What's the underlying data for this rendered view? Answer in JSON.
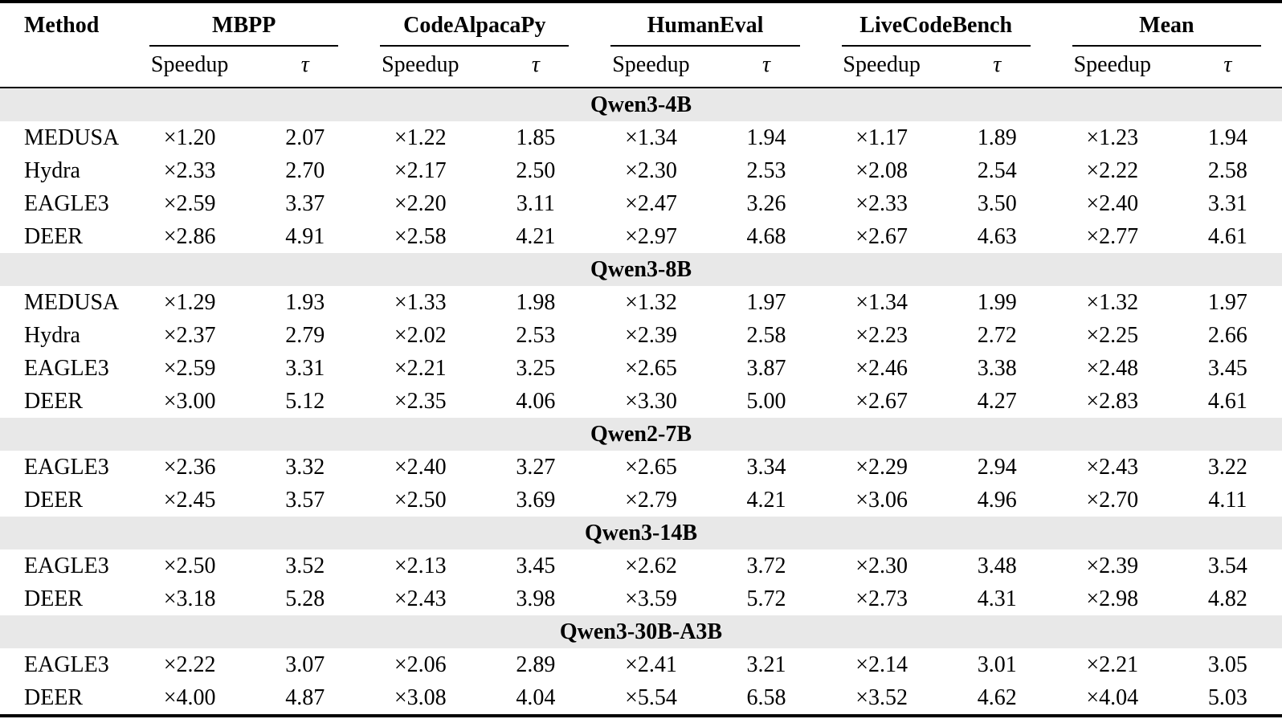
{
  "table": {
    "method_header": "Method",
    "groups": [
      {
        "label": "MBPP"
      },
      {
        "label": "CodeAlpacaPy"
      },
      {
        "label": "HumanEval"
      },
      {
        "label": "LiveCodeBench"
      },
      {
        "label": "Mean"
      }
    ],
    "subheaders": {
      "speedup": "Speedup",
      "tau": "τ"
    },
    "sections": [
      {
        "model": "Qwen3-4B",
        "rows": [
          {
            "method": "MEDUSA",
            "values": [
              "×1.20",
              "2.07",
              "×1.22",
              "1.85",
              "×1.34",
              "1.94",
              "×1.17",
              "1.89",
              "×1.23",
              "1.94"
            ]
          },
          {
            "method": "Hydra",
            "values": [
              "×2.33",
              "2.70",
              "×2.17",
              "2.50",
              "×2.30",
              "2.53",
              "×2.08",
              "2.54",
              "×2.22",
              "2.58"
            ]
          },
          {
            "method": "EAGLE3",
            "values": [
              "×2.59",
              "3.37",
              "×2.20",
              "3.11",
              "×2.47",
              "3.26",
              "×2.33",
              "3.50",
              "×2.40",
              "3.31"
            ]
          },
          {
            "method": "DEER",
            "values": [
              "×2.86",
              "4.91",
              "×2.58",
              "4.21",
              "×2.97",
              "4.68",
              "×2.67",
              "4.63",
              "×2.77",
              "4.61"
            ]
          }
        ]
      },
      {
        "model": "Qwen3-8B",
        "rows": [
          {
            "method": "MEDUSA",
            "values": [
              "×1.29",
              "1.93",
              "×1.33",
              "1.98",
              "×1.32",
              "1.97",
              "×1.34",
              "1.99",
              "×1.32",
              "1.97"
            ]
          },
          {
            "method": "Hydra",
            "values": [
              "×2.37",
              "2.79",
              "×2.02",
              "2.53",
              "×2.39",
              "2.58",
              "×2.23",
              "2.72",
              "×2.25",
              "2.66"
            ]
          },
          {
            "method": "EAGLE3",
            "values": [
              "×2.59",
              "3.31",
              "×2.21",
              "3.25",
              "×2.65",
              "3.87",
              "×2.46",
              "3.38",
              "×2.48",
              "3.45"
            ]
          },
          {
            "method": "DEER",
            "values": [
              "×3.00",
              "5.12",
              "×2.35",
              "4.06",
              "×3.30",
              "5.00",
              "×2.67",
              "4.27",
              "×2.83",
              "4.61"
            ]
          }
        ]
      },
      {
        "model": "Qwen2-7B",
        "rows": [
          {
            "method": "EAGLE3",
            "values": [
              "×2.36",
              "3.32",
              "×2.40",
              "3.27",
              "×2.65",
              "3.34",
              "×2.29",
              "2.94",
              "×2.43",
              "3.22"
            ]
          },
          {
            "method": "DEER",
            "values": [
              "×2.45",
              "3.57",
              "×2.50",
              "3.69",
              "×2.79",
              "4.21",
              "×3.06",
              "4.96",
              "×2.70",
              "4.11"
            ]
          }
        ]
      },
      {
        "model": "Qwen3-14B",
        "rows": [
          {
            "method": "EAGLE3",
            "values": [
              "×2.50",
              "3.52",
              "×2.13",
              "3.45",
              "×2.62",
              "3.72",
              "×2.30",
              "3.48",
              "×2.39",
              "3.54"
            ]
          },
          {
            "method": "DEER",
            "values": [
              "×3.18",
              "5.28",
              "×2.43",
              "3.98",
              "×3.59",
              "5.72",
              "×2.73",
              "4.31",
              "×2.98",
              "4.82"
            ]
          }
        ]
      },
      {
        "model": "Qwen3-30B-A3B",
        "rows": [
          {
            "method": "EAGLE3",
            "values": [
              "×2.22",
              "3.07",
              "×2.06",
              "2.89",
              "×2.41",
              "3.21",
              "×2.14",
              "3.01",
              "×2.21",
              "3.05"
            ]
          },
          {
            "method": "DEER",
            "values": [
              "×4.00",
              "4.87",
              "×3.08",
              "4.04",
              "×5.54",
              "6.58",
              "×3.52",
              "4.62",
              "×4.04",
              "5.03"
            ]
          }
        ]
      }
    ]
  },
  "colors": {
    "section_band": "#e8e8e8",
    "rule": "#000000",
    "background": "#ffffff",
    "text": "#000000"
  }
}
